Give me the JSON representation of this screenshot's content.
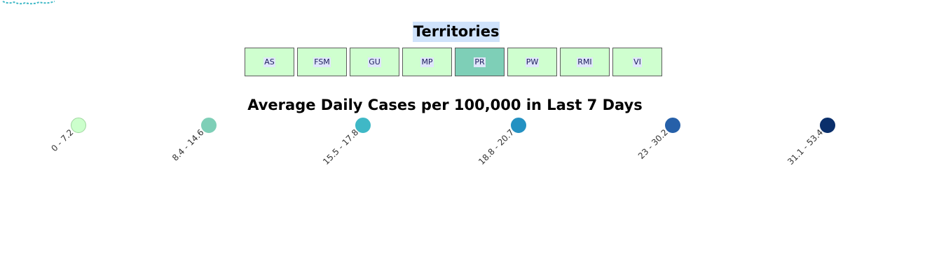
{
  "territories": {
    "title": "Territories",
    "selected": "PR",
    "buttons": [
      "AS",
      "FSM",
      "GU",
      "MP",
      "PR",
      "PW",
      "RMI",
      "VI"
    ]
  },
  "legend": {
    "title": "Average Daily Cases per 100,000 in Last 7 Days",
    "items": [
      {
        "label": "0 - 7.2",
        "color": "#ccffcc"
      },
      {
        "label": "8.4 - 14.6",
        "color": "#7ecfb7"
      },
      {
        "label": "15.5 - 17.8",
        "color": "#3fb8c6"
      },
      {
        "label": "18.8 - 20.7",
        "color": "#2491c2"
      },
      {
        "label": "23 - 30.2",
        "color": "#2660a9"
      },
      {
        "label": "31.1 - 53.4",
        "color": "#0a2f6b"
      }
    ]
  },
  "colors": {
    "button_default": "#cfffcf",
    "button_selected": "#7ecfb7",
    "title_highlight": "#cfe2fb",
    "map_fragment": "#3fb8c6"
  }
}
